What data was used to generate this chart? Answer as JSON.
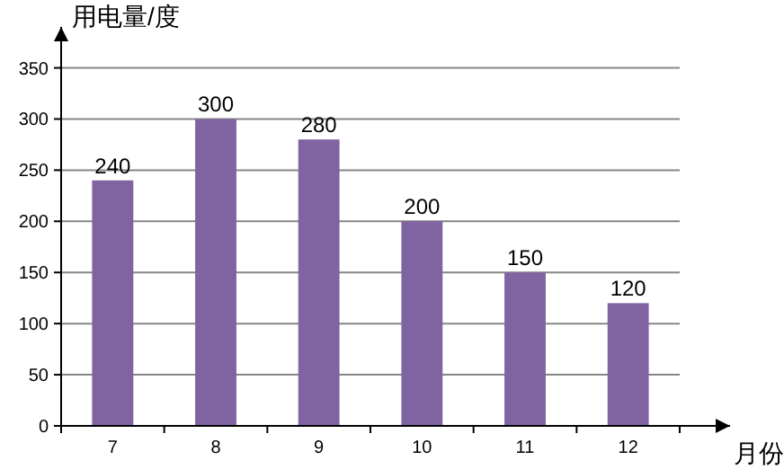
{
  "chart_data": {
    "type": "bar",
    "xlabel": "月份",
    "ylabel": "用电量/度",
    "categories": [
      "7",
      "8",
      "9",
      "10",
      "11",
      "12"
    ],
    "values": [
      240,
      300,
      280,
      200,
      150,
      120
    ],
    "color": "#8064a2",
    "ylim": [
      0,
      390
    ],
    "yticks": [
      0,
      50,
      100,
      150,
      200,
      250,
      300,
      350
    ],
    "grid": "y",
    "data_labels": true
  }
}
